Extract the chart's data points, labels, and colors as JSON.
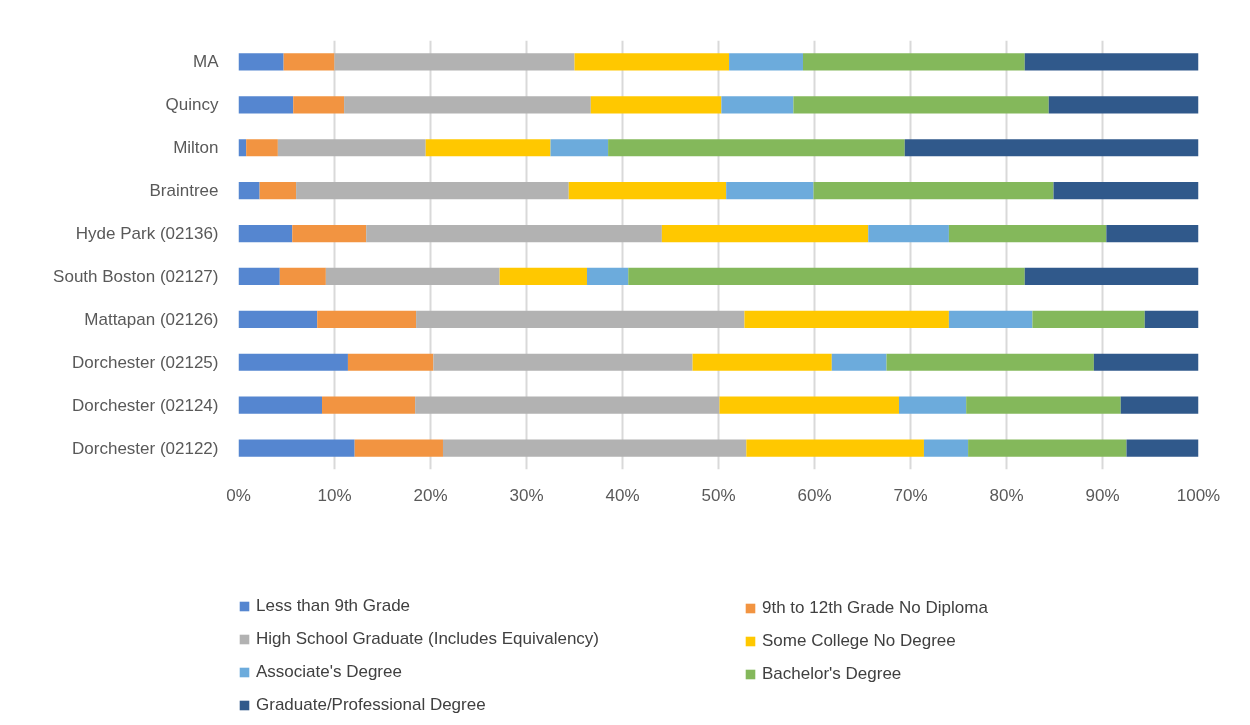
{
  "chart_data": {
    "type": "bar",
    "orientation": "horizontal",
    "stacked": true,
    "categories": [
      "MA",
      "Quincy",
      "Milton",
      "Braintree",
      "Hyde Park (02136)",
      "South Boston (02127)",
      "Mattapan (02126)",
      "Dorchester (02125)",
      "Dorchester (02124)",
      "Dorchester (02122)"
    ],
    "series": [
      {
        "name": "Less than 9th Grade",
        "color": "#5586d0",
        "values": [
          4.7,
          5.7,
          0.8,
          2.2,
          5.6,
          4.3,
          8.2,
          11.4,
          8.7,
          12.1
        ]
      },
      {
        "name": "9th to 12th Grade No Diploma",
        "color": "#f29441",
        "values": [
          5.3,
          5.3,
          3.3,
          3.8,
          7.7,
          4.8,
          10.3,
          8.9,
          9.7,
          9.2
        ]
      },
      {
        "name": "High School Graduate (Includes Equivalency)",
        "color": "#b2b2b2",
        "values": [
          25.0,
          25.7,
          15.4,
          28.4,
          30.8,
          18.1,
          34.2,
          27.0,
          31.7,
          31.6
        ]
      },
      {
        "name": "Some College No Degree",
        "color": "#ffc800",
        "values": [
          16.1,
          13.6,
          13.0,
          16.4,
          21.5,
          9.1,
          21.3,
          14.5,
          18.7,
          18.5
        ]
      },
      {
        "name": "Associate's Degree",
        "color": "#6cabdc",
        "values": [
          7.7,
          7.5,
          6.0,
          9.1,
          8.4,
          4.3,
          8.7,
          5.7,
          7.0,
          4.6
        ]
      },
      {
        "name": "Bachelor's Degree",
        "color": "#84b85b",
        "values": [
          23.1,
          26.6,
          30.9,
          25.0,
          16.4,
          41.3,
          11.7,
          21.6,
          16.1,
          16.5
        ]
      },
      {
        "name": "Graduate/Professional Degree",
        "color": "#30598b",
        "values": [
          18.1,
          15.6,
          30.6,
          15.1,
          9.6,
          18.1,
          5.6,
          10.9,
          8.1,
          7.5
        ]
      }
    ],
    "xlim": [
      0,
      100
    ],
    "xticks": [
      {
        "value": 0,
        "label": "0%"
      },
      {
        "value": 10,
        "label": "10%"
      },
      {
        "value": 20,
        "label": "20%"
      },
      {
        "value": 30,
        "label": "30%"
      },
      {
        "value": 40,
        "label": "40%"
      },
      {
        "value": 50,
        "label": "50%"
      },
      {
        "value": 60,
        "label": "60%"
      },
      {
        "value": 70,
        "label": "70%"
      },
      {
        "value": 80,
        "label": "80%"
      },
      {
        "value": 90,
        "label": "90%"
      },
      {
        "value": 100,
        "label": "100%"
      }
    ],
    "grid": "x",
    "legend": "bottom"
  }
}
